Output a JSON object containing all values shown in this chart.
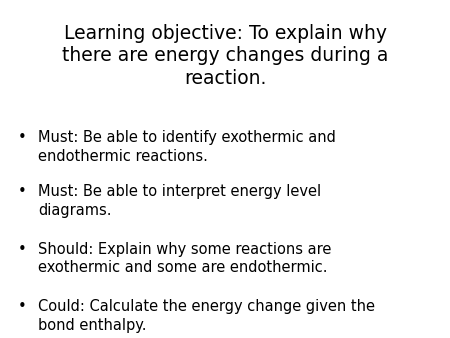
{
  "title": "Learning objective: To explain why\nthere are energy changes during a\nreaction.",
  "bullets": [
    "Must: Be able to identify exothermic and\nendothermic reactions.",
    "Must: Be able to interpret energy level\ndiagrams.",
    "Should: Explain why some reactions are\nexothermic and some are endothermic.",
    "Could: Calculate the energy change given the\nbond enthalpy."
  ],
  "background_color": "#ffffff",
  "text_color": "#000000",
  "title_fontsize": 13.5,
  "bullet_fontsize": 10.5,
  "bullet_char": "•"
}
